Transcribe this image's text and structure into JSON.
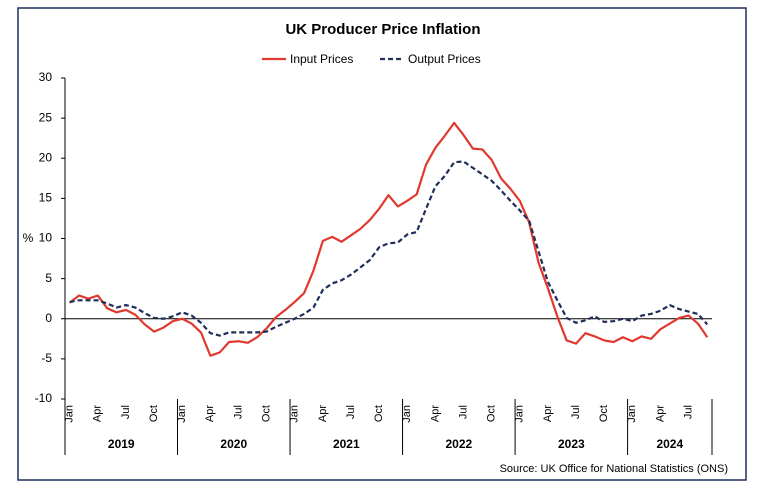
{
  "chart_data": {
    "type": "line",
    "title": "UK Producer Price Inflation",
    "y_label": "%",
    "source": "Source: UK Office for National Statistics (ONS)",
    "categories": [
      "Jan",
      null,
      null,
      "Apr",
      null,
      null,
      "Jul",
      null,
      null,
      "Oct",
      null,
      null,
      "Jan",
      null,
      null,
      "Apr",
      null,
      null,
      "Jul",
      null,
      null,
      "Oct",
      null,
      null,
      "Jan",
      null,
      null,
      "Apr",
      null,
      null,
      "Jul",
      null,
      null,
      "Oct",
      null,
      null,
      "Jan",
      null,
      null,
      "Apr",
      null,
      null,
      "Jul",
      null,
      null,
      "Oct",
      null,
      null,
      "Jan",
      null,
      null,
      "Apr",
      null,
      null,
      "Jul",
      null,
      null,
      "Oct",
      null,
      null,
      "Jan",
      null,
      null,
      "Apr",
      null,
      null,
      "Jul",
      null,
      null
    ],
    "years": [
      "2019",
      "2020",
      "2021",
      "2022",
      "2023",
      "2024"
    ],
    "series": [
      {
        "name": "Input Prices",
        "color": "#e0392f",
        "dash": false,
        "values": [
          2.0,
          2.9,
          2.5,
          2.9,
          1.3,
          0.8,
          1.1,
          0.5,
          -0.7,
          -1.6,
          -1.1,
          -0.3,
          0.0,
          -0.6,
          -1.7,
          -4.6,
          -4.2,
          -2.9,
          -2.8,
          -3.0,
          -2.3,
          -1.2,
          0.2,
          1.1,
          2.1,
          3.2,
          6.0,
          9.7,
          10.2,
          9.6,
          10.4,
          11.2,
          12.3,
          13.7,
          15.4,
          14.0,
          14.7,
          15.5,
          19.2,
          21.3,
          22.8,
          24.4,
          22.9,
          21.2,
          21.1,
          19.8,
          17.5,
          16.2,
          14.7,
          12.0,
          7.0,
          3.8,
          0.3,
          -2.7,
          -3.1,
          -1.8,
          -2.2,
          -2.7,
          -2.9,
          -2.3,
          -2.8,
          -2.2,
          -2.5,
          -1.3,
          -0.6,
          0.1,
          0.4,
          -0.6,
          -2.3
        ]
      },
      {
        "name": "Output Prices",
        "color": "#1f2d5a",
        "dash": true,
        "values": [
          2.1,
          2.3,
          2.3,
          2.3,
          1.9,
          1.4,
          1.7,
          1.4,
          0.7,
          0.1,
          0.0,
          0.3,
          0.8,
          0.4,
          -0.5,
          -1.8,
          -2.1,
          -1.7,
          -1.7,
          -1.7,
          -1.7,
          -1.6,
          -1.0,
          -0.5,
          0.0,
          0.6,
          1.4,
          3.6,
          4.4,
          4.8,
          5.5,
          6.4,
          7.3,
          8.9,
          9.4,
          9.5,
          10.5,
          10.8,
          13.7,
          16.5,
          17.8,
          19.5,
          19.6,
          18.8,
          18.0,
          17.2,
          16.0,
          14.7,
          13.5,
          12.2,
          8.4,
          4.6,
          2.3,
          0.1,
          -0.5,
          -0.2,
          0.3,
          -0.4,
          -0.3,
          0.0,
          -0.3,
          0.4,
          0.6,
          1.0,
          1.7,
          1.2,
          0.9,
          0.6,
          -0.7
        ]
      }
    ],
    "ylim": [
      -10,
      30
    ],
    "yticks": [
      -10,
      -5,
      0,
      5,
      10,
      15,
      20,
      25,
      30
    ],
    "grid": false
  }
}
